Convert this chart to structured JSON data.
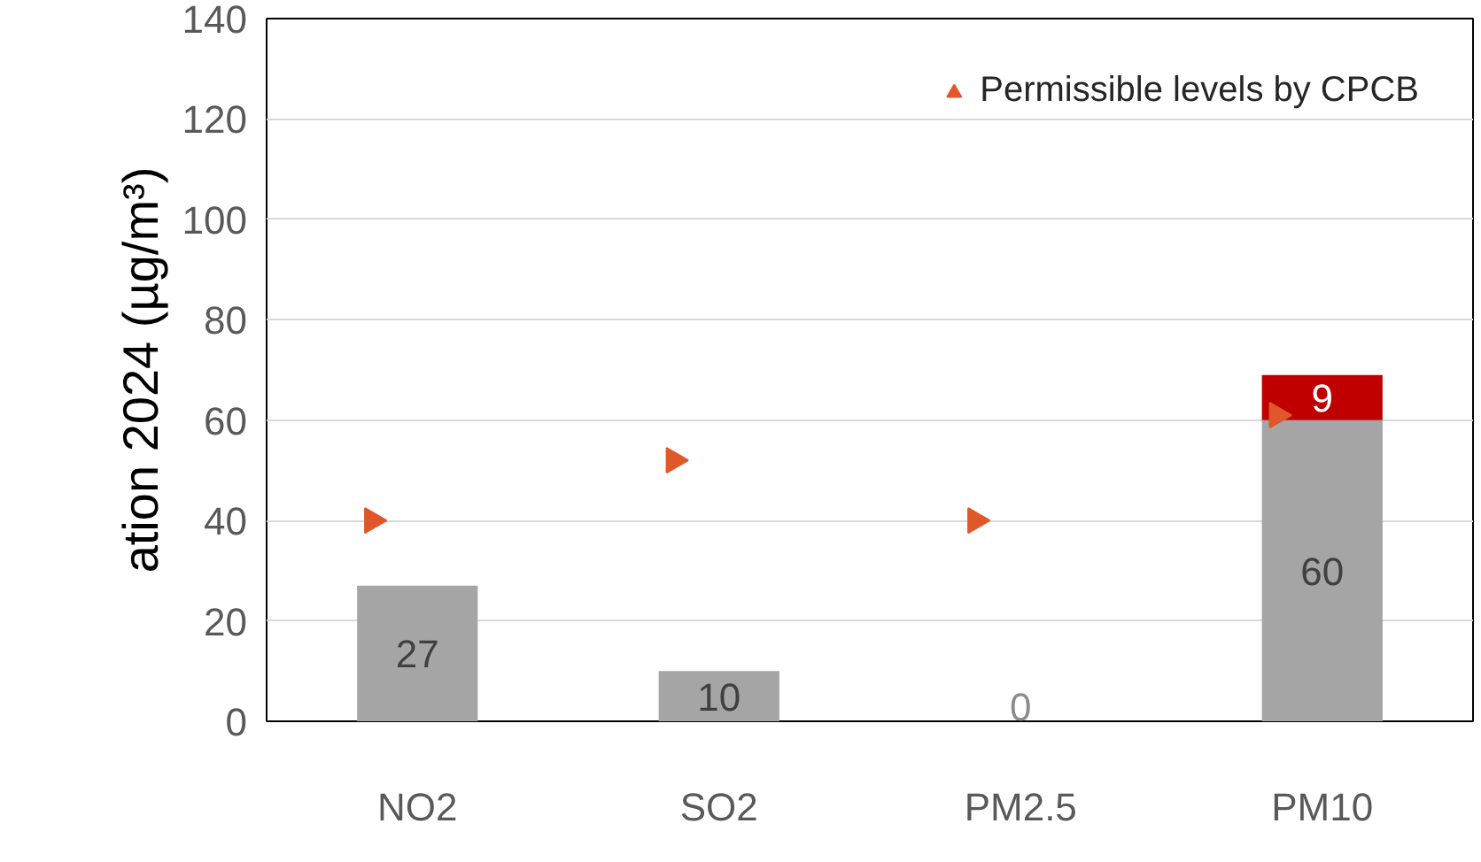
{
  "chart_data": {
    "type": "bar",
    "stacked": true,
    "ylabel": "ation 2024 (µg/m³)",
    "categories": [
      "NO2",
      "SO2",
      "PM2.5",
      "PM10"
    ],
    "series": [
      {
        "color": "#a5a5a5",
        "values": [
          27,
          10,
          0,
          60
        ],
        "value_labels": [
          "27",
          "10",
          "0",
          "60"
        ]
      },
      {
        "color": "#c00000",
        "values": [
          0,
          0,
          0,
          9
        ],
        "value_labels": [
          null,
          null,
          null,
          "9"
        ]
      },
      {
        "type": "scatter",
        "name": "Permissible levels by CPCB",
        "color": "#e0582a",
        "marker": "triangle",
        "values": [
          40,
          52,
          40,
          61
        ]
      }
    ],
    "ylim": [
      0,
      140
    ],
    "yticks": [
      0,
      20,
      40,
      60,
      80,
      100,
      120,
      140
    ],
    "grid": "y",
    "legend": "top right"
  }
}
